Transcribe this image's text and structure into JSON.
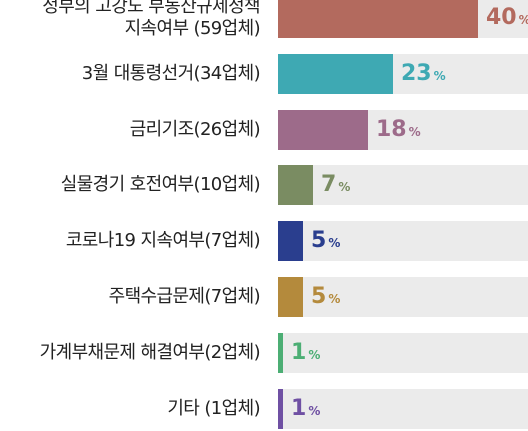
{
  "chart_data": {
    "type": "bar",
    "orientation": "horizontal",
    "categories": [
      [
        "정부의 고강도 부동산규제정책",
        "지속여부 (59업체)"
      ],
      [
        "3월 대통령선거(34업체)"
      ],
      [
        "금리기조(26업체)"
      ],
      [
        "실물경기 호전여부(10업체)"
      ],
      [
        "코로나19 지속여부(7업체)"
      ],
      [
        "주택수급문제(7업체)"
      ],
      [
        "가계부채문제 해결여부(2업체)"
      ],
      [
        "기타 (1업체)"
      ]
    ],
    "values": [
      40,
      23,
      18,
      7,
      5,
      5,
      1,
      1
    ],
    "value_unit": "%",
    "colors": [
      "#b36a5e",
      "#3ea9b3",
      "#9d6b8a",
      "#7a8c62",
      "#2a3e8e",
      "#b48a3c",
      "#4cae74",
      "#6f50a3"
    ],
    "xlim": [
      0,
      40
    ],
    "grid": false,
    "legend": "none"
  }
}
